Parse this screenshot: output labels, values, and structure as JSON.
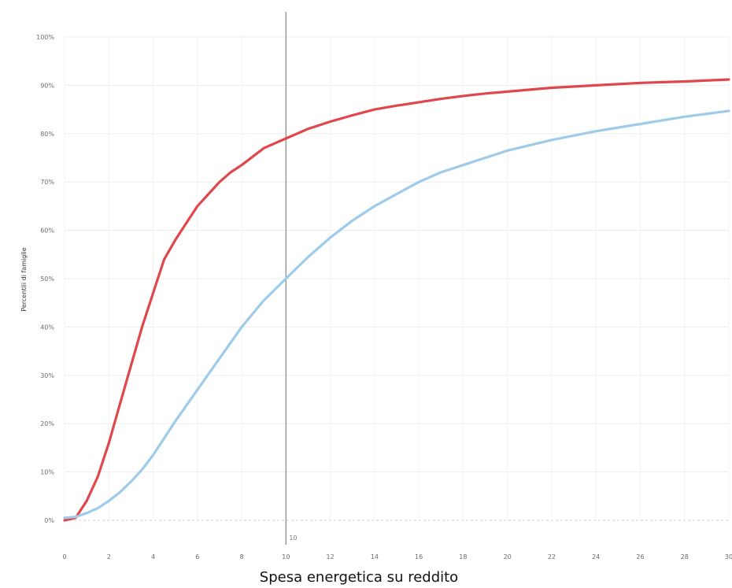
{
  "chart_data": {
    "type": "line",
    "title": "",
    "xlabel": "Spesa energetica su reddito",
    "ylabel": "Percentili di famiglie",
    "xlim": [
      0,
      30
    ],
    "ylim": [
      0,
      1
    ],
    "x_ticks": [
      0,
      2,
      4,
      6,
      8,
      10,
      12,
      14,
      16,
      18,
      20,
      22,
      24,
      26,
      28,
      30
    ],
    "x_tick_labels": [
      "0",
      "2",
      "4",
      "6",
      "8",
      "10",
      "12",
      "14",
      "16",
      "18",
      "20",
      "22",
      "24",
      "26",
      "28",
      "30"
    ],
    "y_ticks": [
      0,
      0.1,
      0.2,
      0.3,
      0.4,
      0.5,
      0.6,
      0.7,
      0.8,
      0.9,
      1.0
    ],
    "y_tick_labels": [
      "0%",
      "10%",
      "20%",
      "30%",
      "40%",
      "50%",
      "60%",
      "70%",
      "80%",
      "90%",
      "100%"
    ],
    "grid": true,
    "reference_line": {
      "x": 10,
      "label": "10",
      "color": "#9a9a9a"
    },
    "series": [
      {
        "color": "#e0474c",
        "x": [
          0,
          0.5,
          1,
          1.5,
          2,
          2.5,
          3,
          3.5,
          4,
          4.5,
          5,
          5.5,
          6,
          6.5,
          7,
          7.5,
          8,
          9,
          10,
          11,
          12,
          13,
          14,
          15,
          16,
          17,
          18,
          19,
          20,
          22,
          24,
          26,
          28,
          30
        ],
        "y": [
          0,
          0.005,
          0.04,
          0.09,
          0.16,
          0.24,
          0.32,
          0.4,
          0.47,
          0.54,
          0.58,
          0.615,
          0.65,
          0.675,
          0.7,
          0.72,
          0.735,
          0.77,
          0.79,
          0.81,
          0.825,
          0.838,
          0.85,
          0.858,
          0.865,
          0.872,
          0.878,
          0.883,
          0.887,
          0.895,
          0.9,
          0.905,
          0.908,
          0.912
        ]
      },
      {
        "color": "#9fcbea",
        "x": [
          0,
          0.5,
          1,
          1.5,
          2,
          2.5,
          3,
          3.5,
          4,
          4.5,
          5,
          6,
          7,
          8,
          9,
          10,
          11,
          12,
          13,
          14,
          15,
          16,
          17,
          18,
          19,
          20,
          22,
          24,
          26,
          28,
          30
        ],
        "y": [
          0.005,
          0.007,
          0.015,
          0.025,
          0.04,
          0.058,
          0.08,
          0.105,
          0.135,
          0.17,
          0.205,
          0.27,
          0.335,
          0.4,
          0.455,
          0.5,
          0.545,
          0.585,
          0.62,
          0.65,
          0.675,
          0.7,
          0.72,
          0.735,
          0.75,
          0.765,
          0.787,
          0.805,
          0.82,
          0.835,
          0.847
        ]
      }
    ]
  }
}
